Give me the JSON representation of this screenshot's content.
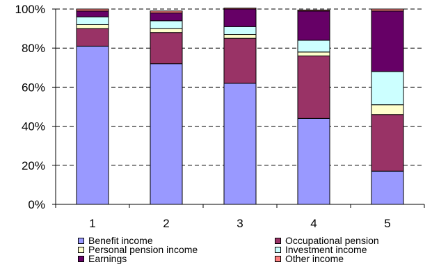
{
  "chart_data": {
    "type": "bar",
    "stacked": true,
    "percent": true,
    "categories": [
      "1",
      "2",
      "3",
      "4",
      "5"
    ],
    "series": [
      {
        "name": "Benefit income",
        "color": "#9999ff",
        "values": [
          81,
          72,
          62,
          44,
          17
        ]
      },
      {
        "name": "Occupational pension",
        "color": "#993366",
        "values": [
          9,
          16,
          23,
          32,
          29
        ]
      },
      {
        "name": "Personal pension income",
        "color": "#ffffcc",
        "values": [
          2,
          2,
          2,
          2,
          5
        ]
      },
      {
        "name": "Investment income",
        "color": "#ccffff",
        "values": [
          4,
          4,
          4,
          6,
          17
        ]
      },
      {
        "name": "Earnings",
        "color": "#660066",
        "values": [
          3,
          4,
          9,
          15,
          31
        ]
      },
      {
        "name": "Other income",
        "color": "#ff8080",
        "values": [
          1,
          1,
          0.5,
          0.5,
          1
        ]
      }
    ],
    "y_ticks": [
      "0%",
      "20%",
      "40%",
      "60%",
      "80%",
      "100%"
    ],
    "ylim": [
      0,
      100
    ],
    "grid": "horizontal-dashed",
    "legend_position": "bottom",
    "title": "",
    "xlabel": "",
    "ylabel": ""
  }
}
